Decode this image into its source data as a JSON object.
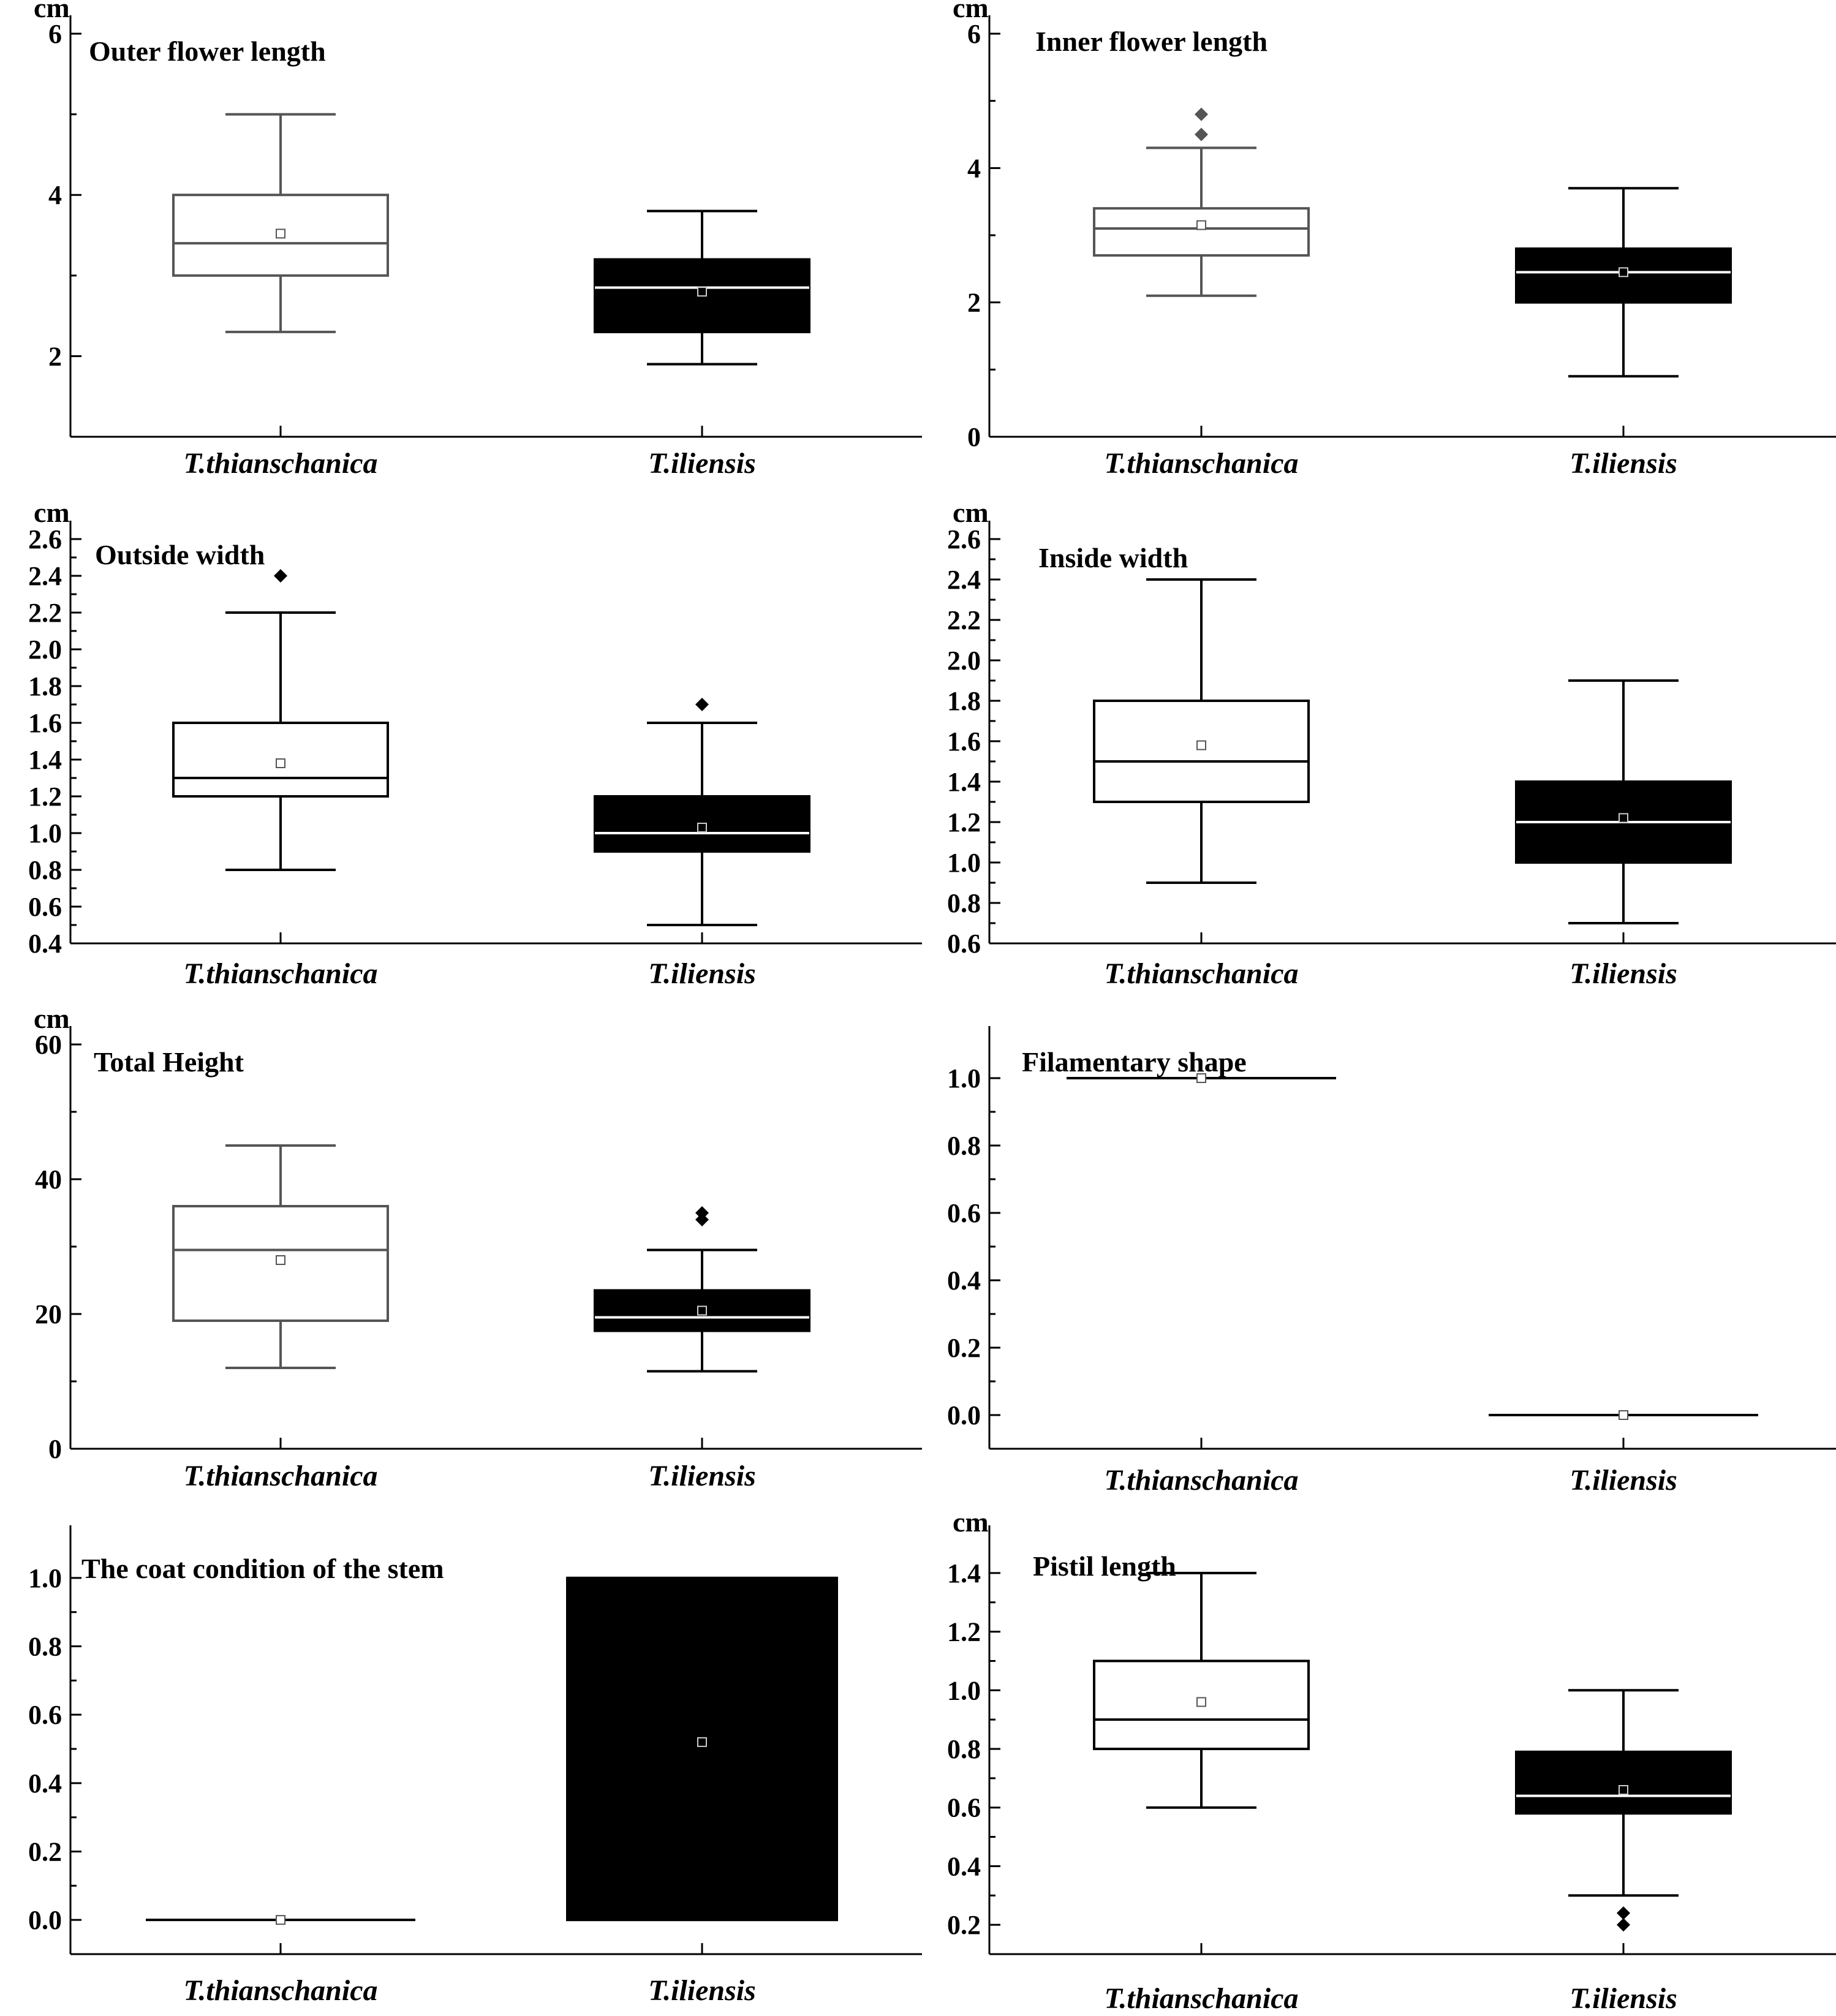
{
  "chart_data": [
    {
      "type": "box",
      "title": "Outer flower length",
      "ylabel": "cm",
      "ylim": [
        1,
        6
      ],
      "yticks": [
        2,
        4,
        6
      ],
      "ytick_labels": [
        "2",
        "4",
        "6"
      ],
      "categories": [
        "T.thianschanica",
        "T.iliensis"
      ],
      "boxes": [
        {
          "name": "T.thianschanica",
          "min": 2.3,
          "q1": 3.0,
          "median": 3.4,
          "q3": 4.0,
          "max": 5.0,
          "mean": 3.52,
          "outliers": [],
          "style": "open-gray"
        },
        {
          "name": "T.iliensis",
          "min": 1.9,
          "q1": 2.3,
          "median": 2.85,
          "q3": 3.2,
          "max": 3.8,
          "mean": 2.8,
          "outliers": [],
          "style": "filled-black"
        }
      ]
    },
    {
      "type": "box",
      "title": "Inner flower length",
      "ylabel": "cm",
      "ylim": [
        0,
        6
      ],
      "yticks": [
        0,
        2,
        4,
        6
      ],
      "ytick_labels": [
        "0",
        "2",
        "4",
        "6"
      ],
      "categories": [
        "T.thianschanica",
        "T.iliensis"
      ],
      "boxes": [
        {
          "name": "T.thianschanica",
          "min": 2.1,
          "q1": 2.7,
          "median": 3.1,
          "q3": 3.4,
          "max": 4.3,
          "mean": 3.15,
          "outliers": [
            4.5,
            4.8
          ],
          "style": "open-gray"
        },
        {
          "name": "T.iliensis",
          "min": 0.9,
          "q1": 2.0,
          "median": 2.45,
          "q3": 2.8,
          "max": 3.7,
          "mean": 2.45,
          "outliers": [],
          "style": "filled-black"
        }
      ]
    },
    {
      "type": "box",
      "title": "Outside width",
      "ylabel": "cm",
      "ylim": [
        0.4,
        2.6
      ],
      "yticks": [
        0.4,
        0.6,
        0.8,
        1.0,
        1.2,
        1.4,
        1.6,
        1.8,
        2.0,
        2.2,
        2.4,
        2.6
      ],
      "ytick_labels": [
        "0.4",
        "0.6",
        "0.8",
        "1.0",
        "1.2",
        "1.4",
        "1.6",
        "1.8",
        "2.0",
        "2.2",
        "2.4",
        "2.6"
      ],
      "categories": [
        "T.thianschanica",
        "T.iliensis"
      ],
      "boxes": [
        {
          "name": "T.thianschanica",
          "min": 0.8,
          "q1": 1.2,
          "median": 1.3,
          "q3": 1.6,
          "max": 2.2,
          "mean": 1.38,
          "outliers": [
            2.4
          ],
          "style": "open-black"
        },
        {
          "name": "T.iliensis",
          "min": 0.5,
          "q1": 0.9,
          "median": 1.0,
          "q3": 1.2,
          "max": 1.6,
          "mean": 1.03,
          "outliers": [
            1.7
          ],
          "style": "filled-black"
        }
      ]
    },
    {
      "type": "box",
      "title": "Inside width",
      "ylabel": "cm",
      "ylim": [
        0.6,
        2.6
      ],
      "yticks": [
        0.6,
        0.8,
        1.0,
        1.2,
        1.4,
        1.6,
        1.8,
        2.0,
        2.2,
        2.4,
        2.6
      ],
      "ytick_labels": [
        "0.6",
        "0.8",
        "1.0",
        "1.2",
        "1.4",
        "1.6",
        "1.8",
        "2.0",
        "2.2",
        "2.4",
        "2.6"
      ],
      "categories": [
        "T.thianschanica",
        "T.iliensis"
      ],
      "boxes": [
        {
          "name": "T.thianschanica",
          "min": 0.9,
          "q1": 1.3,
          "median": 1.5,
          "q3": 1.8,
          "max": 2.4,
          "mean": 1.58,
          "outliers": [],
          "style": "open-black"
        },
        {
          "name": "T.iliensis",
          "min": 0.7,
          "q1": 1.0,
          "median": 1.2,
          "q3": 1.4,
          "max": 1.9,
          "mean": 1.22,
          "outliers": [],
          "style": "filled-black"
        }
      ]
    },
    {
      "type": "box",
      "title": "Total Height",
      "ylabel": "cm",
      "ylim": [
        0,
        60
      ],
      "yticks": [
        0,
        20,
        40,
        60
      ],
      "ytick_labels": [
        "0",
        "20",
        "40",
        "60"
      ],
      "categories": [
        "T.thianschanica",
        "T.iliensis"
      ],
      "boxes": [
        {
          "name": "T.thianschanica",
          "min": 12,
          "q1": 19,
          "median": 29.5,
          "q3": 36,
          "max": 45,
          "mean": 28,
          "outliers": [],
          "style": "open-gray"
        },
        {
          "name": "T.iliensis",
          "min": 11.5,
          "q1": 17.5,
          "median": 19.5,
          "q3": 23.5,
          "max": 29.5,
          "mean": 20.5,
          "outliers": [
            34,
            35
          ],
          "style": "filled-black"
        }
      ]
    },
    {
      "type": "box",
      "title": "Filamentary shape",
      "ylabel": "",
      "ylim": [
        -0.1,
        1.1
      ],
      "yticks": [
        0.0,
        0.2,
        0.4,
        0.6,
        0.8,
        1.0
      ],
      "ytick_labels": [
        "0.0",
        "0.2",
        "0.4",
        "0.6",
        "0.8",
        "1.0"
      ],
      "categories": [
        "T.thianschanica",
        "T.iliensis"
      ],
      "boxes": [
        {
          "name": "T.thianschanica",
          "min": 1.0,
          "q1": 1.0,
          "median": 1.0,
          "q3": 1.0,
          "max": 1.0,
          "mean": 1.0,
          "outliers": [],
          "style": "flat"
        },
        {
          "name": "T.iliensis",
          "min": 0.0,
          "q1": 0.0,
          "median": 0.0,
          "q3": 0.0,
          "max": 0.0,
          "mean": 0.0,
          "outliers": [],
          "style": "flat"
        }
      ]
    },
    {
      "type": "box",
      "title": "The coat condition of the stem",
      "ylabel": "",
      "ylim": [
        -0.1,
        1.1
      ],
      "yticks": [
        0.0,
        0.2,
        0.4,
        0.6,
        0.8,
        1.0
      ],
      "ytick_labels": [
        "0.0",
        "0.2",
        "0.4",
        "0.6",
        "0.8",
        "1.0"
      ],
      "categories": [
        "T.thianschanica",
        "T.iliensis"
      ],
      "boxes": [
        {
          "name": "T.thianschanica",
          "min": 0.0,
          "q1": 0.0,
          "median": 0.0,
          "q3": 0.0,
          "max": 0.0,
          "mean": 0.0,
          "outliers": [],
          "style": "flat"
        },
        {
          "name": "T.iliensis",
          "min": 0.0,
          "q1": 0.0,
          "median": 1.0,
          "q3": 1.0,
          "max": 1.0,
          "mean": 0.52,
          "outliers": [],
          "style": "filled-black"
        }
      ]
    },
    {
      "type": "box",
      "title": "Pistil length",
      "ylabel": "cm",
      "ylim": [
        0.1,
        1.5
      ],
      "yticks": [
        0.2,
        0.4,
        0.6,
        0.8,
        1.0,
        1.2,
        1.4
      ],
      "ytick_labels": [
        "0.2",
        "0.4",
        "0.6",
        "0.8",
        "1.0",
        "1.2",
        "1.4"
      ],
      "categories": [
        "T.thianschanica",
        "T.iliensis"
      ],
      "boxes": [
        {
          "name": "T.thianschanica",
          "min": 0.6,
          "q1": 0.8,
          "median": 0.9,
          "q3": 1.1,
          "max": 1.4,
          "mean": 0.96,
          "outliers": [],
          "style": "open-black"
        },
        {
          "name": "T.iliensis",
          "min": 0.3,
          "q1": 0.58,
          "median": 0.64,
          "q3": 0.79,
          "max": 1.0,
          "mean": 0.66,
          "outliers": [
            0.2,
            0.24
          ],
          "style": "filled-black"
        }
      ]
    }
  ]
}
